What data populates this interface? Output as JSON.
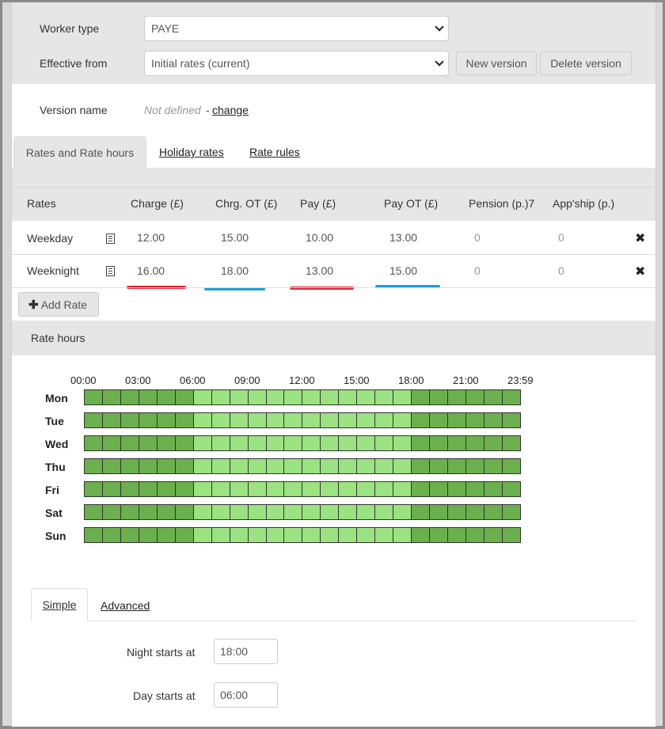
{
  "form": {
    "worker_type_label": "Worker type",
    "worker_type_value": "PAYE",
    "effective_from_label": "Effective from",
    "effective_from_value": "Initial rates (current)",
    "new_version_label": "New version",
    "delete_version_label": "Delete version",
    "version_name_label": "Version name",
    "version_name_value": "Not defined",
    "version_name_sep": "-",
    "change_link": "change"
  },
  "tabs": [
    {
      "label": "Rates and Rate hours",
      "active": true
    },
    {
      "label": "Holiday rates",
      "active": false
    },
    {
      "label": "Rate rules",
      "active": false
    }
  ],
  "rates_table": {
    "headers": [
      "Rates",
      "Charge (£)",
      "Chrg. OT (£)",
      "Pay (£)",
      "Pay OT (£)",
      "Pension (p.)7",
      "App'ship (p.)"
    ],
    "rows": [
      {
        "name": "Weekday",
        "charge": "12.00",
        "charge_ot": "15.00",
        "pay": "10.00",
        "pay_ot": "13.00",
        "pension": "0",
        "appship": "0"
      },
      {
        "name": "Weeknight",
        "charge": "16.00",
        "charge_ot": "18.00",
        "pay": "13.00",
        "pay_ot": "15.00",
        "pension": "0",
        "appship": "0"
      }
    ],
    "add_rate_label": "Add Rate"
  },
  "rate_hours": {
    "section_title": "Rate hours",
    "time_labels": [
      "00:00",
      "03:00",
      "06:00",
      "09:00",
      "12:00",
      "15:00",
      "18:00",
      "21:00",
      "23:59"
    ],
    "days": [
      "Mon",
      "Tue",
      "Wed",
      "Thu",
      "Fri",
      "Sat",
      "Sun"
    ],
    "night_color": "#6ab04c",
    "day_color": "#9be281",
    "night_hours_morning": [
      0,
      1,
      2,
      3,
      4,
      5
    ],
    "night_hours_evening": [
      18,
      19,
      20,
      21,
      22,
      23
    ]
  },
  "mode_tabs": [
    {
      "label": "Simple",
      "active": true
    },
    {
      "label": "Advanced",
      "active": false
    }
  ],
  "simple": {
    "night_starts_label": "Night starts at",
    "night_starts_value": "18:00",
    "day_starts_label": "Day starts at",
    "day_starts_value": "06:00"
  },
  "highlight_colors": {
    "red": "#e0202e",
    "blue": "#1a9ee0"
  }
}
